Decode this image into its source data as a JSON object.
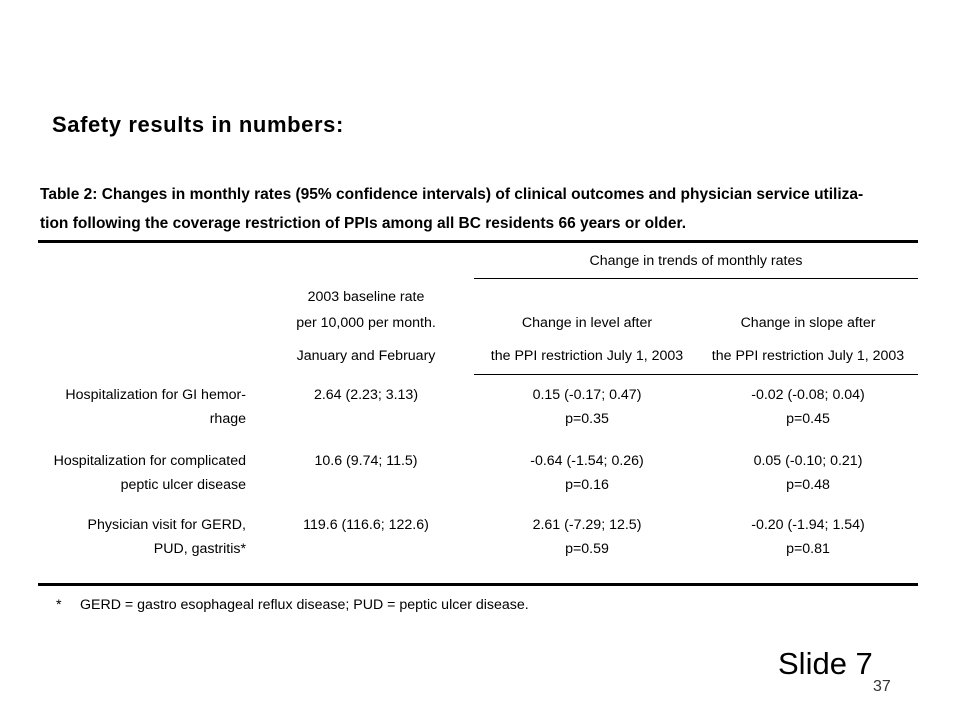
{
  "heading": "Safety results in numbers:",
  "caption": {
    "line1": "Table 2: Changes in monthly rates (95% confidence intervals) of clinical outcomes and physician service utiliza-",
    "line2": "tion following the coverage restriction of PPIs among all BC residents 66 years or older."
  },
  "table": {
    "group_header": "Change in trends of monthly rates",
    "col_baseline": {
      "line1": "2003 baseline rate",
      "line2": "per 10,000 per month.",
      "line3": "January and February"
    },
    "col_level": {
      "line1": "Change in level after",
      "line2": "the PPI restriction July 1, 2003"
    },
    "col_slope": {
      "line1": "Change in slope after",
      "line2": "the PPI restriction July 1, 2003"
    },
    "rows": [
      {
        "label1": "Hospitalization for GI hemor-",
        "label2": "rhage",
        "baseline": "2.64  (2.23; 3.13)",
        "level": "0.15  (-0.17; 0.47)",
        "level_p": "p=0.35",
        "slope": "-0.02  (-0.08; 0.04)",
        "slope_p": "p=0.45"
      },
      {
        "label1": "Hospitalization for complicated",
        "label2": "peptic ulcer disease",
        "baseline": "10.6  (9.74; 11.5)",
        "level": "-0.64  (-1.54; 0.26)",
        "level_p": "p=0.16",
        "slope": "0.05  (-0.10; 0.21)",
        "slope_p": "p=0.48"
      },
      {
        "label1": "Physician visit for GERD,",
        "label2": "PUD, gastritis*",
        "baseline": "119.6  (116.6; 122.6)",
        "level": "2.61  (-7.29; 12.5)",
        "level_p": "p=0.59",
        "slope": "-0.20  (-1.94; 1.54)",
        "slope_p": "p=0.81"
      }
    ]
  },
  "footnote": {
    "marker": "*",
    "text": "GERD = gastro esophageal reflux disease; PUD = peptic ulcer disease."
  },
  "slide_label": "Slide 7",
  "page_number": "37"
}
